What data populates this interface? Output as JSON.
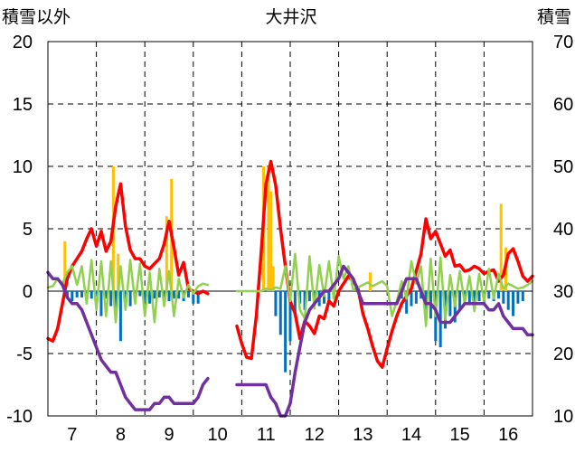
{
  "header": {
    "left_axis_label": "積雪以外",
    "title": "大井沢",
    "right_axis_label": "積雪"
  },
  "colors": {
    "temperature_line": "#ff0000",
    "precipitation_line": "#92d050",
    "snow_depth_line": "#7030a0",
    "positive_bars": "#ffc000",
    "negative_bars": "#0070c0",
    "grid": "#000000"
  },
  "chart_data": {
    "type": "line",
    "title": "大井沢",
    "ylabel_left": "積雪以外",
    "ylabel_right": "積雪",
    "x_ticks": [
      "7",
      "8",
      "9",
      "10",
      "11",
      "12",
      "13",
      "14",
      "15",
      "16"
    ],
    "xlim": [
      6.5,
      16.5
    ],
    "ylim_left": [
      -10,
      20
    ],
    "ylim_right": [
      10,
      70
    ],
    "y_ticks_left": [
      "-10",
      "-5",
      "0",
      "5",
      "10",
      "15",
      "20"
    ],
    "y_ticks_right": [
      "10",
      "20",
      "30",
      "40",
      "50",
      "60",
      "70"
    ],
    "grid": true,
    "gap": [
      9.8,
      10.4
    ],
    "series": [
      {
        "axis": "left",
        "style": "thick-line",
        "color": "#ff0000",
        "x": [
          6.5,
          6.6,
          6.7,
          6.8,
          6.9,
          7.0,
          7.1,
          7.2,
          7.3,
          7.4,
          7.5,
          7.6,
          7.7,
          7.8,
          7.9,
          8.0,
          8.1,
          8.2,
          8.3,
          8.4,
          8.5,
          8.6,
          8.7,
          8.8,
          8.9,
          9.0,
          9.1,
          9.2,
          9.3,
          9.4,
          9.5,
          9.6,
          9.7,
          9.8,
          10.4,
          10.5,
          10.6,
          10.7,
          10.8,
          10.9,
          11.0,
          11.1,
          11.2,
          11.3,
          11.4,
          11.5,
          11.6,
          11.7,
          11.8,
          11.9,
          12.0,
          12.1,
          12.2,
          12.3,
          12.4,
          12.5,
          12.6,
          12.7,
          12.8,
          12.9,
          13.0,
          13.1,
          13.2,
          13.3,
          13.4,
          13.5,
          13.6,
          13.7,
          13.8,
          13.9,
          14.0,
          14.1,
          14.2,
          14.3,
          14.4,
          14.5,
          14.6,
          14.7,
          14.8,
          14.9,
          15.0,
          15.1,
          15.2,
          15.3,
          15.4,
          15.5,
          15.6,
          15.7,
          15.8,
          15.9,
          16.0,
          16.1,
          16.2,
          16.3,
          16.4,
          16.5
        ],
        "y": [
          -3.8,
          -4.0,
          -3.0,
          -1.0,
          1.0,
          2.0,
          2.6,
          3.2,
          4.2,
          5.0,
          3.6,
          4.8,
          3.2,
          4.0,
          6.8,
          8.6,
          5.2,
          3.3,
          2.6,
          2.6,
          2.0,
          1.8,
          2.2,
          2.6,
          3.8,
          5.6,
          3.5,
          1.3,
          2.3,
          0.2,
          0.0,
          -0.2,
          0.0,
          -0.2,
          -2.8,
          -4.2,
          -5.3,
          -5.4,
          -2.0,
          3.0,
          8.6,
          10.4,
          8.5,
          5.0,
          2.0,
          -0.8,
          -1.8,
          -3.8,
          -2.4,
          -2.8,
          -3.4,
          -2.0,
          -2.2,
          -0.8,
          -1.2,
          0.0,
          0.6,
          1.2,
          0.8,
          0.2,
          -1.8,
          -3.0,
          -4.4,
          -5.6,
          -6.1,
          -4.6,
          -3.2,
          -2.0,
          -1.0,
          -0.4,
          0.2,
          1.6,
          3.0,
          5.8,
          4.2,
          4.8,
          3.8,
          2.8,
          3.3,
          2.0,
          2.1,
          1.6,
          1.7,
          2.0,
          1.8,
          1.4,
          1.6,
          1.7,
          0.8,
          1.3,
          3.0,
          3.4,
          2.4,
          1.2,
          0.8,
          1.2
        ]
      },
      {
        "axis": "left",
        "style": "thin-line",
        "color": "#92d050",
        "x": [
          6.5,
          6.6,
          6.7,
          6.8,
          6.9,
          7.0,
          7.1,
          7.2,
          7.3,
          7.4,
          7.5,
          7.6,
          7.7,
          7.8,
          7.9,
          8.0,
          8.1,
          8.2,
          8.3,
          8.4,
          8.5,
          8.6,
          8.7,
          8.8,
          8.9,
          9.0,
          9.1,
          9.2,
          9.3,
          9.4,
          9.5,
          9.6,
          9.7,
          9.8,
          10.4,
          10.5,
          10.6,
          10.7,
          10.8,
          10.9,
          11.0,
          11.1,
          11.2,
          11.3,
          11.4,
          11.5,
          11.6,
          11.7,
          11.8,
          11.9,
          12.0,
          12.1,
          12.2,
          12.3,
          12.4,
          12.5,
          12.6,
          12.7,
          12.8,
          12.9,
          13.0,
          13.1,
          13.2,
          13.3,
          13.4,
          13.5,
          13.6,
          13.7,
          13.8,
          13.9,
          14.0,
          14.1,
          14.2,
          14.3,
          14.4,
          14.5,
          14.6,
          14.7,
          14.8,
          14.9,
          15.0,
          15.1,
          15.2,
          15.3,
          15.4,
          15.5,
          15.6,
          15.7,
          15.8,
          15.9,
          16.0,
          16.1,
          16.2,
          16.3,
          16.4,
          16.5
        ],
        "y": [
          0.3,
          0.4,
          1.0,
          0.6,
          1.5,
          2.0,
          0.5,
          2.0,
          -1.0,
          2.5,
          -1.5,
          2.4,
          -2.0,
          2.4,
          -2.5,
          2.0,
          -1.5,
          2.5,
          -1.0,
          2.2,
          -2.0,
          1.5,
          -2.5,
          1.8,
          -1.2,
          1.6,
          -2.0,
          1.0,
          -0.5,
          0.5,
          -0.2,
          0.4,
          0.6,
          0.5,
          0.0,
          0.0,
          0.0,
          0.0,
          0.0,
          0.0,
          0.2,
          0.1,
          0.3,
          0.2,
          2.0,
          -0.8,
          3.0,
          -1.5,
          -2.2,
          2.8,
          -1.4,
          2.1,
          -0.4,
          2.4,
          -0.6,
          2.8,
          1.0,
          2.0,
          0.1,
          0.3,
          0.5,
          0.7,
          0.4,
          0.6,
          0.8,
          0.4,
          -2.0,
          -0.8,
          0.8,
          -0.6,
          2.4,
          0.6,
          2.0,
          -2.8,
          2.6,
          -2.0,
          2.7,
          -2.3,
          1.3,
          -1.2,
          1.6,
          -1.0,
          1.2,
          -1.6,
          1.4,
          -0.8,
          1.8,
          -0.6,
          1.4,
          0.2,
          0.6,
          0.4,
          0.2,
          0.3,
          0.5,
          0.8
        ]
      },
      {
        "axis": "right",
        "style": "thick-line",
        "color": "#7030a0",
        "x": [
          6.5,
          6.6,
          6.7,
          6.8,
          6.9,
          7.0,
          7.1,
          7.2,
          7.3,
          7.4,
          7.5,
          7.6,
          7.7,
          7.8,
          7.9,
          8.0,
          8.1,
          8.2,
          8.3,
          8.4,
          8.5,
          8.6,
          8.7,
          8.8,
          8.9,
          9.0,
          9.1,
          9.2,
          9.3,
          9.4,
          9.5,
          9.6,
          9.7,
          9.8,
          10.4,
          10.5,
          10.6,
          10.7,
          10.8,
          10.9,
          11.0,
          11.1,
          11.2,
          11.3,
          11.4,
          11.5,
          11.6,
          11.7,
          11.8,
          11.9,
          12.0,
          12.1,
          12.2,
          12.3,
          12.4,
          12.5,
          12.6,
          12.7,
          12.8,
          12.9,
          13.0,
          13.1,
          13.2,
          13.3,
          13.4,
          13.5,
          13.6,
          13.7,
          13.8,
          13.9,
          14.0,
          14.1,
          14.2,
          14.3,
          14.4,
          14.5,
          14.6,
          14.7,
          14.8,
          14.9,
          15.0,
          15.1,
          15.2,
          15.3,
          15.4,
          15.5,
          15.6,
          15.7,
          15.8,
          15.9,
          16.0,
          16.1,
          16.2,
          16.3,
          16.4,
          16.5
        ],
        "y": [
          33,
          32,
          32,
          31,
          29,
          28,
          28,
          27,
          25,
          23,
          21,
          19,
          18,
          17,
          17,
          15,
          13,
          12,
          11,
          11,
          11,
          11,
          12,
          12,
          13,
          13,
          12,
          12,
          12,
          12,
          12,
          13,
          15,
          16,
          15,
          15,
          15,
          15,
          15,
          15,
          15,
          13,
          12,
          10,
          10,
          12,
          17,
          21,
          25,
          27,
          28,
          29,
          30,
          30,
          31,
          32,
          34,
          33,
          32,
          30,
          28,
          28,
          28,
          28,
          28,
          28,
          28,
          28,
          30,
          32,
          32,
          32,
          30,
          28,
          28,
          27,
          25,
          25,
          25,
          26,
          27,
          28,
          28,
          28,
          28,
          28,
          27,
          27,
          28,
          26,
          25,
          24,
          24,
          24,
          23,
          23
        ]
      },
      {
        "axis": "left",
        "style": "bars",
        "color": "#ffc000",
        "x": [
          6.85,
          7.85,
          7.95,
          8.95,
          9.05,
          10.95,
          11.05,
          11.1,
          11.15,
          13.15,
          15.85,
          15.95
        ],
        "y": [
          4.0,
          10.0,
          3.0,
          6.0,
          9.0,
          10.0,
          10.0,
          8.0,
          2.0,
          1.5,
          7.0,
          3.5
        ]
      },
      {
        "axis": "left",
        "style": "bars",
        "color": "#0070c0",
        "x": [
          6.9,
          7.0,
          7.1,
          7.2,
          7.3,
          7.4,
          7.5,
          7.6,
          7.7,
          7.8,
          7.9,
          8.0,
          8.1,
          8.2,
          8.3,
          8.4,
          8.5,
          8.6,
          8.7,
          8.8,
          8.9,
          9.0,
          9.1,
          9.2,
          9.3,
          9.4,
          9.5,
          9.6,
          11.2,
          11.3,
          11.4,
          11.5,
          11.6,
          11.7,
          11.8,
          11.9,
          12.0,
          12.1,
          12.2,
          12.3,
          12.4,
          12.5,
          13.8,
          13.9,
          14.0,
          14.1,
          14.2,
          14.3,
          14.4,
          14.5,
          14.6,
          14.7,
          14.8,
          14.9,
          15.0,
          15.1,
          15.2,
          15.3,
          15.4,
          15.5,
          15.6,
          15.7,
          15.8,
          15.9,
          16.0,
          16.1,
          16.2,
          16.3
        ],
        "y": [
          -0.6,
          -0.8,
          -0.5,
          -0.5,
          -0.8,
          -0.6,
          -0.4,
          -2.0,
          -0.6,
          -1.2,
          -2.0,
          -4.0,
          -0.8,
          -1.2,
          -0.6,
          -0.4,
          -0.8,
          -1.0,
          -0.6,
          -0.5,
          -0.6,
          -0.8,
          -0.6,
          -0.6,
          -0.8,
          -0.5,
          -1.0,
          -1.0,
          -2.0,
          -3.5,
          -6.5,
          -4.0,
          -2.0,
          -1.0,
          -1.5,
          -0.8,
          -1.0,
          -1.2,
          -1.0,
          -0.8,
          -0.6,
          -0.4,
          -0.6,
          -1.8,
          -1.2,
          -1.0,
          -0.6,
          -1.5,
          -2.2,
          -4.0,
          -4.5,
          -3.0,
          -2.0,
          -2.5,
          -1.5,
          -1.0,
          -1.0,
          -1.2,
          -0.8,
          -1.0,
          -0.6,
          -0.8,
          -0.6,
          -1.0,
          -1.5,
          -2.0,
          -1.0,
          -0.8
        ]
      }
    ]
  }
}
